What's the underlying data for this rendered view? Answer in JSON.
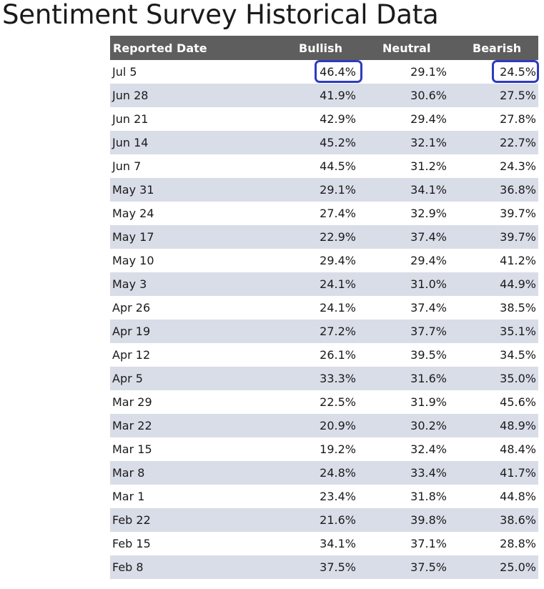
{
  "page": {
    "title": "Sentiment Survey Historical Data"
  },
  "table": {
    "headers": {
      "date": "Reported Date",
      "bullish": "Bullish",
      "neutral": "Neutral",
      "bearish": "Bearish"
    },
    "rows": [
      {
        "date": "Jul 5",
        "bullish": "46.4%",
        "neutral": "29.1%",
        "bearish": "24.5%"
      },
      {
        "date": "Jun 28",
        "bullish": "41.9%",
        "neutral": "30.6%",
        "bearish": "27.5%"
      },
      {
        "date": "Jun 21",
        "bullish": "42.9%",
        "neutral": "29.4%",
        "bearish": "27.8%"
      },
      {
        "date": "Jun 14",
        "bullish": "45.2%",
        "neutral": "32.1%",
        "bearish": "22.7%"
      },
      {
        "date": "Jun 7",
        "bullish": "44.5%",
        "neutral": "31.2%",
        "bearish": "24.3%"
      },
      {
        "date": "May 31",
        "bullish": "29.1%",
        "neutral": "34.1%",
        "bearish": "36.8%"
      },
      {
        "date": "May 24",
        "bullish": "27.4%",
        "neutral": "32.9%",
        "bearish": "39.7%"
      },
      {
        "date": "May 17",
        "bullish": "22.9%",
        "neutral": "37.4%",
        "bearish": "39.7%"
      },
      {
        "date": "May 10",
        "bullish": "29.4%",
        "neutral": "29.4%",
        "bearish": "41.2%"
      },
      {
        "date": "May 3",
        "bullish": "24.1%",
        "neutral": "31.0%",
        "bearish": "44.9%"
      },
      {
        "date": "Apr 26",
        "bullish": "24.1%",
        "neutral": "37.4%",
        "bearish": "38.5%"
      },
      {
        "date": "Apr 19",
        "bullish": "27.2%",
        "neutral": "37.7%",
        "bearish": "35.1%"
      },
      {
        "date": "Apr 12",
        "bullish": "26.1%",
        "neutral": "39.5%",
        "bearish": "34.5%"
      },
      {
        "date": "Apr 5",
        "bullish": "33.3%",
        "neutral": "31.6%",
        "bearish": "35.0%"
      },
      {
        "date": "Mar 29",
        "bullish": "22.5%",
        "neutral": "31.9%",
        "bearish": "45.6%"
      },
      {
        "date": "Mar 22",
        "bullish": "20.9%",
        "neutral": "30.2%",
        "bearish": "48.9%"
      },
      {
        "date": "Mar 15",
        "bullish": "19.2%",
        "neutral": "32.4%",
        "bearish": "48.4%"
      },
      {
        "date": "Mar 8",
        "bullish": "24.8%",
        "neutral": "33.4%",
        "bearish": "41.7%"
      },
      {
        "date": "Mar 1",
        "bullish": "23.4%",
        "neutral": "31.8%",
        "bearish": "44.8%"
      },
      {
        "date": "Feb 22",
        "bullish": "21.6%",
        "neutral": "39.8%",
        "bearish": "38.6%"
      },
      {
        "date": "Feb 15",
        "bullish": "34.1%",
        "neutral": "37.1%",
        "bearish": "28.8%"
      },
      {
        "date": "Feb 8",
        "bullish": "37.5%",
        "neutral": "37.5%",
        "bearish": "25.0%"
      }
    ]
  },
  "annotations": {
    "highlight_color": "#2e3bbf",
    "highlighted_cells": [
      {
        "row": 0,
        "column": "bullish"
      },
      {
        "row": 0,
        "column": "bearish"
      }
    ]
  },
  "colors": {
    "header_bg": "#5e5e5e",
    "header_text": "#ffffff",
    "row_alt_bg": "#d9dde8",
    "row_bg": "#ffffff"
  }
}
